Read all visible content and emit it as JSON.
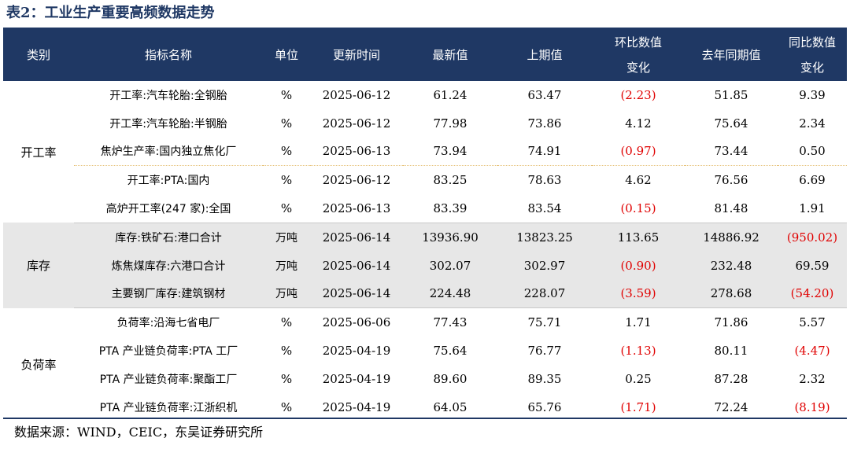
{
  "title": "表2：工业生产重要高频数据走势",
  "columns": [
    "类别",
    "指标名称",
    "单位",
    "更新时间",
    "最新值",
    "上期值",
    "环比数值\n变化",
    "去年同期值",
    "同比数值\n变化"
  ],
  "groups": [
    {
      "category": "开工率",
      "rows": [
        {
          "name": "开工率:汽车轮胎:全钢胎",
          "unit": "%",
          "date": "2025-06-12",
          "latest": "61.24",
          "prev": "63.47",
          "mom": "(2.23)",
          "mom_neg": true,
          "yago": "51.85",
          "yoy": "9.39",
          "yoy_neg": false
        },
        {
          "name": "开工率:汽车轮胎:半钢胎",
          "unit": "%",
          "date": "2025-06-12",
          "latest": "77.98",
          "prev": "73.86",
          "mom": "4.12",
          "mom_neg": false,
          "yago": "75.64",
          "yoy": "2.34",
          "yoy_neg": false
        },
        {
          "name": "焦炉生产率:国内独立焦化厂",
          "unit": "%",
          "date": "2025-06-13",
          "latest": "73.94",
          "prev": "74.91",
          "mom": "(0.97)",
          "mom_neg": true,
          "yago": "73.44",
          "yoy": "0.50",
          "yoy_neg": false
        },
        {
          "name": "开工率:PTA:国内",
          "unit": "%",
          "date": "2025-06-12",
          "latest": "83.25",
          "prev": "78.63",
          "mom": "4.62",
          "mom_neg": false,
          "yago": "76.56",
          "yoy": "6.69",
          "yoy_neg": false
        },
        {
          "name": "高炉开工率(247 家):全国",
          "unit": "%",
          "date": "2025-06-13",
          "latest": "83.39",
          "prev": "83.54",
          "mom": "(0.15)",
          "mom_neg": true,
          "yago": "81.48",
          "yoy": "1.91",
          "yoy_neg": false
        }
      ]
    },
    {
      "category": "库存",
      "rows": [
        {
          "name": "库存:铁矿石:港口合计",
          "unit": "万吨",
          "date": "2025-06-14",
          "latest": "13936.90",
          "prev": "13823.25",
          "mom": "113.65",
          "mom_neg": false,
          "yago": "14886.92",
          "yoy": "(950.02)",
          "yoy_neg": true
        },
        {
          "name": "炼焦煤库存:六港口合计",
          "unit": "万吨",
          "date": "2025-06-14",
          "latest": "302.07",
          "prev": "302.97",
          "mom": "(0.90)",
          "mom_neg": true,
          "yago": "232.48",
          "yoy": "69.59",
          "yoy_neg": false
        },
        {
          "name": "主要钢厂库存:建筑钢材",
          "unit": "万吨",
          "date": "2025-06-14",
          "latest": "224.48",
          "prev": "228.07",
          "mom": "(3.59)",
          "mom_neg": true,
          "yago": "278.68",
          "yoy": "(54.20)",
          "yoy_neg": true
        }
      ]
    },
    {
      "category": "负荷率",
      "rows": [
        {
          "name": "负荷率:沿海七省电厂",
          "unit": "%",
          "date": "2025-06-06",
          "latest": "77.43",
          "prev": "75.71",
          "mom": "1.71",
          "mom_neg": false,
          "yago": "71.86",
          "yoy": "5.57",
          "yoy_neg": false
        },
        {
          "name": "PTA 产业链负荷率:PTA 工厂",
          "unit": "%",
          "date": "2025-04-19",
          "latest": "75.64",
          "prev": "76.77",
          "mom": "(1.13)",
          "mom_neg": true,
          "yago": "80.11",
          "yoy": "(4.47)",
          "yoy_neg": true
        },
        {
          "name": "PTA 产业链负荷率:聚酯工厂",
          "unit": "%",
          "date": "2025-04-19",
          "latest": "89.60",
          "prev": "89.35",
          "mom": "0.25",
          "mom_neg": false,
          "yago": "87.28",
          "yoy": "2.32",
          "yoy_neg": false
        },
        {
          "name": "PTA 产业链负荷率:江浙织机",
          "unit": "%",
          "date": "2025-04-19",
          "latest": "64.05",
          "prev": "65.76",
          "mom": "(1.71)",
          "mom_neg": true,
          "yago": "72.24",
          "yoy": "(8.19)",
          "yoy_neg": true
        }
      ]
    }
  ],
  "source": "数据来源：WIND，CEIC，东吴证券研究所",
  "colors": {
    "header_bg": "#1f3864",
    "negative": "#e00000",
    "shade": "#e7e7e7"
  },
  "chart_data": {
    "type": "table",
    "title": "表2：工业生产重要高频数据走势",
    "columns": [
      "类别",
      "指标名称",
      "单位",
      "更新时间",
      "最新值",
      "上期值",
      "环比数值变化",
      "去年同期值",
      "同比数值变化"
    ],
    "rows": [
      [
        "开工率",
        "开工率:汽车轮胎:全钢胎",
        "%",
        "2025-06-12",
        61.24,
        63.47,
        -2.23,
        51.85,
        9.39
      ],
      [
        "开工率",
        "开工率:汽车轮胎:半钢胎",
        "%",
        "2025-06-12",
        77.98,
        73.86,
        4.12,
        75.64,
        2.34
      ],
      [
        "开工率",
        "焦炉生产率:国内独立焦化厂",
        "%",
        "2025-06-13",
        73.94,
        74.91,
        -0.97,
        73.44,
        0.5
      ],
      [
        "开工率",
        "开工率:PTA:国内",
        "%",
        "2025-06-12",
        83.25,
        78.63,
        4.62,
        76.56,
        6.69
      ],
      [
        "开工率",
        "高炉开工率(247 家):全国",
        "%",
        "2025-06-13",
        83.39,
        83.54,
        -0.15,
        81.48,
        1.91
      ],
      [
        "库存",
        "库存:铁矿石:港口合计",
        "万吨",
        "2025-06-14",
        13936.9,
        13823.25,
        113.65,
        14886.92,
        -950.02
      ],
      [
        "库存",
        "炼焦煤库存:六港口合计",
        "万吨",
        "2025-06-14",
        302.07,
        302.97,
        -0.9,
        232.48,
        69.59
      ],
      [
        "库存",
        "主要钢厂库存:建筑钢材",
        "万吨",
        "2025-06-14",
        224.48,
        228.07,
        -3.59,
        278.68,
        -54.2
      ],
      [
        "负荷率",
        "负荷率:沿海七省电厂",
        "%",
        "2025-06-06",
        77.43,
        75.71,
        1.71,
        71.86,
        5.57
      ],
      [
        "负荷率",
        "PTA 产业链负荷率:PTA 工厂",
        "%",
        "2025-04-19",
        75.64,
        76.77,
        -1.13,
        80.11,
        -4.47
      ],
      [
        "负荷率",
        "PTA 产业链负荷率:聚酯工厂",
        "%",
        "2025-04-19",
        89.6,
        89.35,
        0.25,
        87.28,
        2.32
      ],
      [
        "负荷率",
        "PTA 产业链负荷率:江浙织机",
        "%",
        "2025-04-19",
        64.05,
        65.76,
        -1.71,
        72.24,
        -8.19
      ]
    ]
  }
}
